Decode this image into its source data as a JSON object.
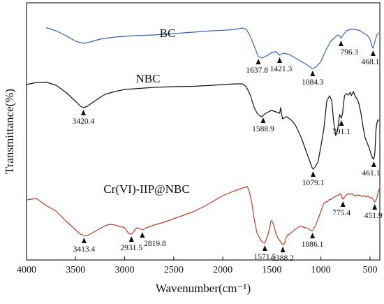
{
  "chart_data": {
    "type": "line",
    "title": "",
    "xlabel": "Wavenumber(cm⁻¹)",
    "ylabel": "Transmittance(%)",
    "xlim": [
      4000,
      400
    ],
    "x_reversed": true,
    "y_ticks_shown": false,
    "x_ticks": [
      4000,
      3500,
      3000,
      2500,
      2000,
      1500,
      1000,
      500
    ],
    "grid": false,
    "legend": "none",
    "series": [
      {
        "name": "BC",
        "color": "#3a63b8",
        "points": [
          [
            3800,
            35.5
          ],
          [
            3700,
            40
          ],
          [
            3600,
            47
          ],
          [
            3500,
            55
          ],
          [
            3420,
            58
          ],
          [
            3350,
            56
          ],
          [
            3250,
            52
          ],
          [
            3100,
            49
          ],
          [
            2900,
            47
          ],
          [
            2700,
            46
          ],
          [
            2500,
            44
          ],
          [
            2300,
            42
          ],
          [
            2100,
            40
          ],
          [
            1950,
            39
          ],
          [
            1850,
            37.5
          ],
          [
            1800,
            36
          ],
          [
            1760,
            38
          ],
          [
            1720,
            48
          ],
          [
            1680,
            62
          ],
          [
            1637.8,
            77
          ],
          [
            1600,
            79
          ],
          [
            1540,
            75
          ],
          [
            1500,
            71
          ],
          [
            1460,
            70
          ],
          [
            1421.3,
            75
          ],
          [
            1380,
            72
          ],
          [
            1320,
            74
          ],
          [
            1260,
            79
          ],
          [
            1200,
            84
          ],
          [
            1150,
            88
          ],
          [
            1100,
            93
          ],
          [
            1084.3,
            94
          ],
          [
            1050,
            92
          ],
          [
            1000,
            84
          ],
          [
            950,
            68
          ],
          [
            900,
            55
          ],
          [
            860,
            50
          ],
          [
            840,
            47
          ],
          [
            820,
            46
          ],
          [
            800,
            49
          ],
          [
            796.3,
            51
          ],
          [
            780,
            47
          ],
          [
            740,
            40
          ],
          [
            700,
            38
          ],
          [
            650,
            38
          ],
          [
            600,
            40
          ],
          [
            560,
            44
          ],
          [
            530,
            46
          ],
          [
            500,
            52
          ],
          [
            480,
            62
          ],
          [
            468.1,
            65
          ],
          [
            450,
            55
          ],
          [
            430,
            46
          ],
          [
            410,
            43
          ]
        ]
      },
      {
        "name": "NBC",
        "color": "#111111",
        "points": [
          [
            4000,
            117
          ],
          [
            3900,
            114
          ],
          [
            3800,
            113.5
          ],
          [
            3700,
            118
          ],
          [
            3600,
            128
          ],
          [
            3500,
            141
          ],
          [
            3450,
            148
          ],
          [
            3420.4,
            150
          ],
          [
            3380,
            148
          ],
          [
            3300,
            140
          ],
          [
            3200,
            131
          ],
          [
            3100,
            127
          ],
          [
            3000,
            124
          ],
          [
            2900,
            123
          ],
          [
            2700,
            121
          ],
          [
            2500,
            120
          ],
          [
            2300,
            119.5
          ],
          [
            2100,
            118
          ],
          [
            1950,
            116.5
          ],
          [
            1850,
            116
          ],
          [
            1800,
            116
          ],
          [
            1760,
            120
          ],
          [
            1720,
            132
          ],
          [
            1680,
            150
          ],
          [
            1650,
            158
          ],
          [
            1620,
            162
          ],
          [
            1600,
            163
          ],
          [
            1588.9,
            161
          ],
          [
            1560,
            158
          ],
          [
            1520,
            155
          ],
          [
            1500,
            154
          ],
          [
            1460,
            156
          ],
          [
            1420,
            158
          ],
          [
            1410,
            150
          ],
          [
            1400,
            160
          ],
          [
            1390,
            166
          ],
          [
            1350,
            163
          ],
          [
            1320,
            166
          ],
          [
            1300,
            168
          ],
          [
            1260,
            175
          ],
          [
            1200,
            193
          ],
          [
            1150,
            213
          ],
          [
            1110,
            228
          ],
          [
            1090,
            236
          ],
          [
            1079.1,
            238
          ],
          [
            1060,
            235
          ],
          [
            1030,
            228
          ],
          [
            1000,
            205
          ],
          [
            970,
            180
          ],
          [
            940,
            140
          ],
          [
            910,
            133
          ],
          [
            890,
            140
          ],
          [
            870,
            170
          ],
          [
            850,
            190
          ],
          [
            830,
            182
          ],
          [
            810,
            160
          ],
          [
            791.1,
            165
          ],
          [
            780,
            158
          ],
          [
            760,
            133
          ],
          [
            740,
            130
          ],
          [
            720,
            132
          ],
          [
            700,
            128
          ],
          [
            690,
            133
          ],
          [
            670,
            127
          ],
          [
            650,
            134
          ],
          [
            630,
            138
          ],
          [
            610,
            146
          ],
          [
            590,
            160
          ],
          [
            570,
            178
          ],
          [
            550,
            193
          ],
          [
            530,
            200
          ],
          [
            510,
            207
          ],
          [
            490,
            216
          ],
          [
            475,
            222
          ],
          [
            461.1,
            224
          ],
          [
            450,
            214
          ],
          [
            440,
            183
          ],
          [
            430,
            172
          ],
          [
            420,
            168
          ],
          [
            405,
            168
          ]
        ]
      },
      {
        "name": "Cr(VI)-IIP@NBC",
        "color": "#b8402b",
        "points": [
          [
            4000,
            282
          ],
          [
            3900,
            280
          ],
          [
            3800,
            290
          ],
          [
            3700,
            298
          ],
          [
            3600,
            312
          ],
          [
            3500,
            325
          ],
          [
            3450,
            331
          ],
          [
            3413.4,
            333
          ],
          [
            3380,
            333
          ],
          [
            3300,
            327
          ],
          [
            3200,
            319
          ],
          [
            3150,
            317
          ],
          [
            3100,
            318
          ],
          [
            3050,
            320
          ],
          [
            3000,
            322
          ],
          [
            2960,
            330
          ],
          [
            2931.5,
            331
          ],
          [
            2910,
            328
          ],
          [
            2880,
            322
          ],
          [
            2850,
            323
          ],
          [
            2819.8,
            325
          ],
          [
            2780,
            322
          ],
          [
            2700,
            318
          ],
          [
            2600,
            314
          ],
          [
            2500,
            309
          ],
          [
            2400,
            304
          ],
          [
            2300,
            299
          ],
          [
            2200,
            292
          ],
          [
            2100,
            284
          ],
          [
            2000,
            276
          ],
          [
            1900,
            270
          ],
          [
            1800,
            265
          ],
          [
            1750,
            263
          ],
          [
            1730,
            270
          ],
          [
            1700,
            290
          ],
          [
            1680,
            310
          ],
          [
            1650,
            330
          ],
          [
            1620,
            338
          ],
          [
            1600,
            342
          ],
          [
            1571.5,
            344
          ],
          [
            1540,
            332
          ],
          [
            1520,
            320
          ],
          [
            1510,
            312
          ],
          [
            1500,
            312
          ],
          [
            1480,
            318
          ],
          [
            1460,
            330
          ],
          [
            1440,
            336
          ],
          [
            1420,
            340
          ],
          [
            1400,
            344
          ],
          [
            1388.2,
            346
          ],
          [
            1370,
            344
          ],
          [
            1360,
            338
          ],
          [
            1350,
            335
          ],
          [
            1340,
            332
          ],
          [
            1330,
            332
          ],
          [
            1310,
            330
          ],
          [
            1280,
            326
          ],
          [
            1250,
            323
          ],
          [
            1220,
            320
          ],
          [
            1200,
            320
          ],
          [
            1180,
            321
          ],
          [
            1150,
            322
          ],
          [
            1120,
            324
          ],
          [
            1100,
            326
          ],
          [
            1086.1,
            326
          ],
          [
            1060,
            320
          ],
          [
            1030,
            310
          ],
          [
            1000,
            298
          ],
          [
            970,
            287
          ],
          [
            950,
            285
          ],
          [
            930,
            284
          ],
          [
            910,
            281
          ],
          [
            900,
            282
          ],
          [
            880,
            279
          ],
          [
            860,
            278
          ],
          [
            840,
            276
          ],
          [
            820,
            275
          ],
          [
            800,
            273
          ],
          [
            790,
            277
          ],
          [
            775.4,
            281
          ],
          [
            760,
            278
          ],
          [
            740,
            275
          ],
          [
            720,
            273
          ],
          [
            700,
            274
          ],
          [
            680,
            273
          ],
          [
            660,
            276
          ],
          [
            640,
            276
          ],
          [
            620,
            275
          ],
          [
            600,
            276
          ],
          [
            580,
            277
          ],
          [
            560,
            276
          ],
          [
            540,
            278
          ],
          [
            520,
            276
          ],
          [
            500,
            279
          ],
          [
            480,
            279
          ],
          [
            451.9,
            285
          ],
          [
            440,
            283
          ],
          [
            430,
            279
          ],
          [
            420,
            273
          ],
          [
            405,
            266
          ]
        ]
      }
    ],
    "series_labels": [
      {
        "text": "BC",
        "series": 0
      },
      {
        "text": "NBC",
        "series": 1
      },
      {
        "text": "Cr(VI)-IIP@NBC",
        "series": 2
      }
    ],
    "annotations": [
      {
        "text": "1637.8",
        "series": 0,
        "x": 1637.8
      },
      {
        "text": "1421.3",
        "series": 0,
        "x": 1421.3
      },
      {
        "text": "1084.3",
        "series": 0,
        "x": 1084.3
      },
      {
        "text": "796.3",
        "series": 0,
        "x": 796.3
      },
      {
        "text": "468.1",
        "series": 0,
        "x": 468.1
      },
      {
        "text": "3420.4",
        "series": 1,
        "x": 3420.4
      },
      {
        "text": "1588.9",
        "series": 1,
        "x": 1588.9
      },
      {
        "text": "1079.1",
        "series": 1,
        "x": 1079.1
      },
      {
        "text": "791.1",
        "series": 1,
        "x": 791.1
      },
      {
        "text": "461.1",
        "series": 1,
        "x": 461.1
      },
      {
        "text": "3413.4",
        "series": 2,
        "x": 3413.4
      },
      {
        "text": "2931.5",
        "series": 2,
        "x": 2931.5
      },
      {
        "text": "2819.8",
        "series": 2,
        "x": 2819.8
      },
      {
        "text": "1571.5",
        "series": 2,
        "x": 1571.5
      },
      {
        "text": "1388.2",
        "series": 2,
        "x": 1388.2
      },
      {
        "text": "1086.1",
        "series": 2,
        "x": 1086.1
      },
      {
        "text": "775.4",
        "series": 2,
        "x": 775.4
      },
      {
        "text": "451.9",
        "series": 2,
        "x": 451.9
      }
    ]
  }
}
